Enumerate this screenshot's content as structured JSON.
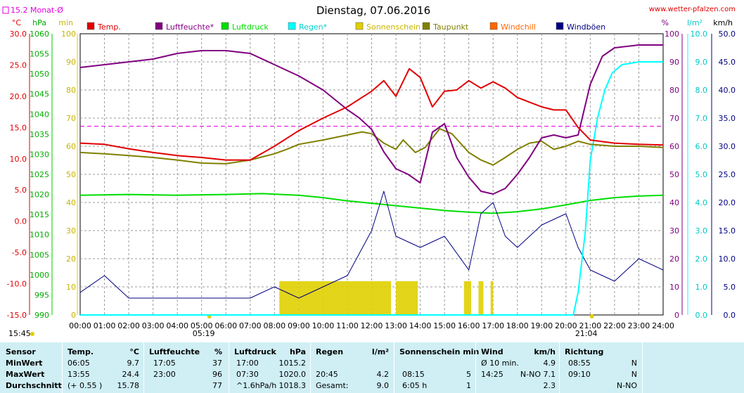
{
  "header": {
    "title": "Dienstag, 07.06.2016",
    "website": "www.wetter-pfalzen.com",
    "monthly_avg": "15.2 Monat-Ø",
    "left_units": [
      "°C",
      "hPa",
      "min"
    ],
    "right_units": [
      "%",
      "l/m²",
      "km/h"
    ],
    "sunrise": "05:19",
    "sunset": "21:04",
    "hour_marker": "15:45"
  },
  "colors": {
    "temp": "#e00000",
    "humidity": "#800080",
    "pressure": "#00dd00",
    "rain": "#00ffff",
    "sunshine": "#e0d000",
    "dewpoint": "#808000",
    "windchill": "#ff6600",
    "gust": "#000080",
    "monthly_avg": "#e000e0"
  },
  "chart_data": {
    "type": "line",
    "title": "Dienstag, 07.06.2016",
    "x": [
      "00:00",
      "01:00",
      "02:00",
      "03:00",
      "04:00",
      "05:00",
      "06:00",
      "07:00",
      "08:00",
      "09:00",
      "10:00",
      "11:00",
      "12:00",
      "13:00",
      "14:00",
      "15:00",
      "16:00",
      "17:00",
      "18:00",
      "19:00",
      "20:00",
      "21:00",
      "22:00",
      "23:00",
      "24:00"
    ],
    "axes": {
      "temp_c": {
        "ticks": [
          "30.0",
          "25.0",
          "20.0",
          "15.0",
          "10.0",
          "5.0",
          "0.0",
          "-5.0",
          "-10.0",
          "-15.0"
        ],
        "range": [
          -15,
          30
        ]
      },
      "pressure_hpa": {
        "ticks": [
          "1060",
          "1055",
          "1050",
          "1045",
          "1040",
          "1035",
          "1030",
          "1025",
          "1020",
          "1015",
          "1010",
          "1005",
          "1000",
          "995",
          "990"
        ],
        "range": [
          990,
          1060
        ]
      },
      "sunshine_min": {
        "ticks": [
          "100",
          "90",
          "80",
          "70",
          "60",
          "50",
          "40",
          "30",
          "20",
          "10",
          "0"
        ],
        "range": [
          0,
          100
        ]
      },
      "humidity_pct": {
        "ticks": [
          "100",
          "90",
          "80",
          "70",
          "60",
          "50",
          "40",
          "30",
          "20",
          "10",
          "0"
        ],
        "range": [
          0,
          100
        ]
      },
      "rain_lm2": {
        "ticks": [
          "10.0",
          "9.0",
          "8.0",
          "7.0",
          "6.0",
          "5.0",
          "4.0",
          "3.0",
          "2.0",
          "1.0",
          "0.0"
        ],
        "range": [
          0,
          10
        ]
      },
      "wind_kmh": {
        "ticks": [
          "50.0",
          "45.0",
          "40.0",
          "35.0",
          "30.0",
          "25.0",
          "20.0",
          "15.0",
          "10.0",
          "5.0",
          "0.0"
        ],
        "range": [
          0,
          50
        ]
      }
    },
    "monthly_avg_temp": 15.2,
    "legend": [
      {
        "name": "Temp.",
        "color": "#e00000"
      },
      {
        "name": "Luftfeuchte*",
        "color": "#800080"
      },
      {
        "name": "Luftdruck",
        "color": "#00dd00"
      },
      {
        "name": "Regen*",
        "color": "#00ffff"
      },
      {
        "name": "Sonnenschein",
        "color": "#e0d000"
      },
      {
        "name": "Taupunkt",
        "color": "#808000"
      },
      {
        "name": "Windchill",
        "color": "#ff6600"
      },
      {
        "name": "Windböen",
        "color": "#000080"
      }
    ],
    "series": [
      {
        "name": "Temp.",
        "unit": "°C",
        "points": [
          [
            0,
            12.5
          ],
          [
            1,
            12.3
          ],
          [
            2,
            11.6
          ],
          [
            3,
            11.0
          ],
          [
            4,
            10.5
          ],
          [
            5,
            10.2
          ],
          [
            6,
            9.8
          ],
          [
            7,
            9.8
          ],
          [
            8,
            12.0
          ],
          [
            9,
            14.5
          ],
          [
            10,
            16.5
          ],
          [
            11,
            18.3
          ],
          [
            12,
            20.8
          ],
          [
            12.5,
            22.5
          ],
          [
            13,
            20.0
          ],
          [
            13.55,
            24.4
          ],
          [
            14,
            23.0
          ],
          [
            14.5,
            18.3
          ],
          [
            15,
            20.8
          ],
          [
            15.5,
            21.0
          ],
          [
            16,
            22.5
          ],
          [
            16.5,
            21.3
          ],
          [
            17,
            22.3
          ],
          [
            17.5,
            21.3
          ],
          [
            18,
            19.8
          ],
          [
            19,
            18.3
          ],
          [
            19.5,
            17.8
          ],
          [
            20,
            17.8
          ],
          [
            20.5,
            15.0
          ],
          [
            21,
            13.0
          ],
          [
            22,
            12.5
          ],
          [
            23,
            12.3
          ],
          [
            24,
            12.2
          ]
        ]
      },
      {
        "name": "Taupunkt",
        "unit": "°C",
        "points": [
          [
            0,
            11.0
          ],
          [
            1,
            10.8
          ],
          [
            2,
            10.5
          ],
          [
            3,
            10.2
          ],
          [
            4,
            9.8
          ],
          [
            5,
            9.3
          ],
          [
            6,
            9.2
          ],
          [
            7,
            9.8
          ],
          [
            8,
            10.8
          ],
          [
            8.5,
            11.5
          ],
          [
            9,
            12.3
          ],
          [
            10,
            13.0
          ],
          [
            11,
            13.8
          ],
          [
            11.6,
            14.3
          ],
          [
            12,
            14.0
          ],
          [
            12.5,
            12.5
          ],
          [
            13,
            11.5
          ],
          [
            13.3,
            13.0
          ],
          [
            13.8,
            11.0
          ],
          [
            14.2,
            11.8
          ],
          [
            14.8,
            14.8
          ],
          [
            15.3,
            14.0
          ],
          [
            15.7,
            12.3
          ],
          [
            16,
            11.0
          ],
          [
            16.5,
            9.8
          ],
          [
            17,
            9.0
          ],
          [
            17.5,
            10.2
          ],
          [
            18,
            11.5
          ],
          [
            18.5,
            12.5
          ],
          [
            19,
            12.8
          ],
          [
            19.5,
            11.5
          ],
          [
            20,
            12.0
          ],
          [
            20.5,
            12.8
          ],
          [
            21,
            12.3
          ],
          [
            22,
            12.0
          ],
          [
            23,
            12.0
          ],
          [
            24,
            11.8
          ]
        ]
      },
      {
        "name": "Luftfeuchte*",
        "unit": "%",
        "points": [
          [
            0,
            88
          ],
          [
            1,
            89
          ],
          [
            2,
            90
          ],
          [
            3,
            91
          ],
          [
            4,
            93
          ],
          [
            5,
            94
          ],
          [
            6,
            94
          ],
          [
            7,
            93
          ],
          [
            8,
            89
          ],
          [
            9,
            85
          ],
          [
            10,
            80
          ],
          [
            11,
            73
          ],
          [
            11.5,
            70
          ],
          [
            12,
            66
          ],
          [
            12.5,
            58
          ],
          [
            13,
            52
          ],
          [
            13.5,
            50
          ],
          [
            14,
            47
          ],
          [
            14.5,
            65
          ],
          [
            15,
            68
          ],
          [
            15.5,
            56
          ],
          [
            16,
            49
          ],
          [
            16.5,
            44
          ],
          [
            17,
            43
          ],
          [
            17.5,
            45
          ],
          [
            18,
            50
          ],
          [
            18.5,
            56
          ],
          [
            19,
            63
          ],
          [
            19.5,
            64
          ],
          [
            20,
            63
          ],
          [
            20.5,
            64
          ],
          [
            21,
            82
          ],
          [
            21.5,
            92
          ],
          [
            22,
            95
          ],
          [
            23,
            96
          ],
          [
            24,
            96
          ]
        ]
      },
      {
        "name": "Luftdruck",
        "unit": "hPa",
        "points": [
          [
            0,
            1019.8
          ],
          [
            2,
            1020.0
          ],
          [
            4,
            1019.8
          ],
          [
            6,
            1020.0
          ],
          [
            7.5,
            1020.2
          ],
          [
            9,
            1019.8
          ],
          [
            10,
            1019.2
          ],
          [
            11,
            1018.4
          ],
          [
            12,
            1017.8
          ],
          [
            13,
            1017.2
          ],
          [
            14,
            1016.6
          ],
          [
            15,
            1016.0
          ],
          [
            16,
            1015.6
          ],
          [
            17,
            1015.3
          ],
          [
            18,
            1015.7
          ],
          [
            19,
            1016.4
          ],
          [
            20,
            1017.4
          ],
          [
            21,
            1018.5
          ],
          [
            22,
            1019.2
          ],
          [
            23,
            1019.6
          ],
          [
            24,
            1019.8
          ]
        ]
      },
      {
        "name": "Regen*",
        "unit": "l/m²",
        "points": [
          [
            0,
            0
          ],
          [
            20.3,
            0
          ],
          [
            20.5,
            0.8
          ],
          [
            20.8,
            3.0
          ],
          [
            21,
            5.5
          ],
          [
            21.3,
            7.0
          ],
          [
            21.6,
            8.0
          ],
          [
            21.9,
            8.6
          ],
          [
            22.3,
            8.9
          ],
          [
            23,
            9.0
          ],
          [
            24,
            9.0
          ]
        ]
      },
      {
        "name": "Windböen",
        "unit": "km/h",
        "points": [
          [
            0,
            4
          ],
          [
            1,
            7
          ],
          [
            2,
            3
          ],
          [
            3,
            3
          ],
          [
            4,
            3
          ],
          [
            5,
            3
          ],
          [
            6,
            3
          ],
          [
            7,
            3
          ],
          [
            8,
            5
          ],
          [
            9,
            3
          ],
          [
            10,
            5
          ],
          [
            11,
            7
          ],
          [
            12,
            15
          ],
          [
            12.5,
            22
          ],
          [
            13,
            14
          ],
          [
            14,
            12
          ],
          [
            15,
            14
          ],
          [
            16,
            8
          ],
          [
            16.5,
            18
          ],
          [
            17,
            20
          ],
          [
            17.5,
            14
          ],
          [
            18,
            12
          ],
          [
            19,
            16
          ],
          [
            20,
            18
          ],
          [
            20.5,
            12
          ],
          [
            21,
            8
          ],
          [
            22,
            6
          ],
          [
            23,
            10
          ],
          [
            24,
            8
          ]
        ]
      }
    ],
    "sunshine_bars": [
      [
        8.2,
        9.0
      ],
      [
        9.0,
        12.8
      ],
      [
        13.0,
        13.9
      ],
      [
        15.8,
        16.1
      ],
      [
        16.4,
        16.6
      ],
      [
        16.9,
        17.0
      ]
    ]
  },
  "summary_table": {
    "headers": {
      "sensor": "Sensor",
      "temp": "Temp.",
      "temp_unit": "°C",
      "hum": "Luftfeuchte",
      "hum_unit": "%",
      "press": "Luftdruck",
      "press_unit": "hPa",
      "rain": "Regen",
      "rain_unit": "l/m²",
      "sun": "Sonnenschein min",
      "wind": "Wind",
      "wind_unit": "km/h",
      "dir": "Richtung"
    },
    "rows": [
      {
        "label": "MinWert",
        "temp_time": "06:05",
        "temp": "9.7",
        "hum_time": "17:05",
        "hum": "37",
        "press_time": "17:00",
        "press": "1015.2",
        "rain_time": "",
        "rain": "",
        "sun_time": "",
        "sun": "",
        "wind_time": "Ø 10 min.",
        "wind": "4.9",
        "dir_time": "08:55",
        "dir": "N"
      },
      {
        "label": "MaxWert",
        "temp_time": "13:55",
        "temp": "24.4",
        "hum_time": "23:00",
        "hum": "96",
        "press_time": "07:30",
        "press": "1020.0",
        "rain_time": "20:45",
        "rain": "4.2",
        "sun_time": "08:15",
        "sun": "5",
        "wind_time": "14:25",
        "wind": "N-NO 7.1",
        "dir_time": "09:10",
        "dir": "N"
      },
      {
        "label": "Durchschnitt",
        "temp_time": "(+ 0.55 )",
        "temp": "15.78",
        "hum_time": "",
        "hum": "77",
        "press_time": "^1.6hPa/h",
        "press": "1018.3",
        "rain_time": "Gesamt:",
        "rain": "9.0",
        "sun_time": "6:05 h",
        "sun": "1",
        "wind_time": "",
        "wind": "2.3",
        "dir_time": "",
        "dir": "N-NO"
      }
    ]
  }
}
